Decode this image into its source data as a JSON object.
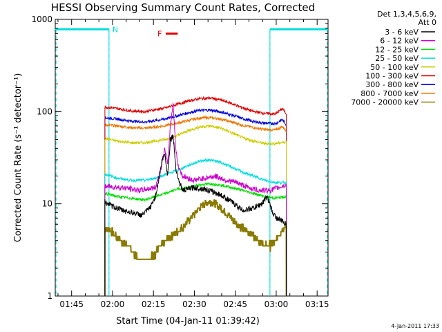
{
  "chart_data": {
    "type": "line",
    "title": "HESSI Observing Summary Count Rates, Corrected",
    "xlabel": "Start Time (04-Jan-11 01:39:42)",
    "ylabel": "Corrected Count Rate (s⁻¹ detector⁻¹)",
    "yscale": "log",
    "ylim": [
      1,
      1000
    ],
    "xlim_minutes": [
      -0.7,
      99.3
    ],
    "x_ticks": [
      "01:45",
      "02:00",
      "02:15",
      "02:30",
      "02:45",
      "03:00",
      "03:15"
    ],
    "x_tick_minutes": [
      5.3,
      20.3,
      35.3,
      50.3,
      65.3,
      80.3,
      95.3
    ],
    "y_ticks": [
      "1",
      "10",
      "100",
      "1000"
    ],
    "y_tick_values": [
      1,
      10,
      100,
      1000
    ],
    "legend_header": [
      "Det 1,3,4,5,6,9,",
      "Att 0"
    ],
    "legend_position": "right",
    "series": [
      {
        "name": "3 - 6 keV",
        "color": "#000000",
        "x": [
          17.5,
          20,
          24,
          28,
          31,
          34,
          36,
          37.5,
          38.5,
          39.5,
          40.5,
          41.5,
          42.5,
          43.5,
          44.5,
          46,
          50,
          54,
          57,
          60,
          64,
          68,
          72,
          75,
          77,
          79,
          80.5,
          82.5,
          84
        ],
        "y": [
          10.5,
          9.5,
          8.5,
          8,
          7.5,
          9,
          12,
          20,
          30,
          35,
          20,
          50,
          55,
          25,
          18,
          14,
          15,
          14.5,
          13.5,
          12.5,
          10.5,
          8.5,
          9,
          10,
          12,
          8,
          7,
          6.5,
          6
        ]
      },
      {
        "name": "6 - 12 keV",
        "color": "#cc00cc",
        "x": [
          17.5,
          24,
          30,
          36,
          38,
          39.5,
          40.5,
          41.5,
          42.5,
          43.5,
          44.5,
          46,
          50,
          54,
          58,
          62,
          66,
          70,
          74,
          78,
          81,
          84
        ],
        "y": [
          15.5,
          15,
          14,
          15,
          24,
          40,
          26,
          70,
          125,
          38,
          25,
          20,
          18,
          19,
          20,
          18,
          17,
          15,
          14,
          14,
          15,
          16
        ]
      },
      {
        "name": "12 - 25 keV",
        "color": "#00dd00",
        "x": [
          17.5,
          22,
          27,
          32,
          36,
          40,
          44,
          48,
          52,
          56,
          60,
          64,
          68,
          72,
          76,
          80,
          84
        ],
        "y": [
          13,
          12,
          11.5,
          11,
          12,
          13,
          14.5,
          15,
          16,
          16.5,
          16,
          15,
          14,
          13,
          12,
          11.5,
          12
        ]
      },
      {
        "name": "25 - 50 keV",
        "color": "#00dddd",
        "x": [
          17.5,
          22,
          27,
          32,
          36,
          40,
          44,
          48,
          52,
          56,
          60,
          64,
          68,
          72,
          76,
          80,
          84
        ],
        "y": [
          21,
          19,
          18,
          18,
          19,
          21,
          23,
          26,
          29,
          30,
          28,
          25,
          22,
          20,
          18,
          17,
          17
        ]
      },
      {
        "name": "50 - 100 keV",
        "color": "#cccc00",
        "x": [
          17.5,
          22,
          27,
          32,
          36,
          40,
          44,
          48,
          52,
          56,
          60,
          64,
          68,
          72,
          76,
          80,
          84
        ],
        "y": [
          51,
          48,
          46,
          46,
          48,
          50,
          55,
          62,
          68,
          70,
          66,
          59,
          52,
          48,
          45,
          45,
          47
        ]
      },
      {
        "name": "100 - 300 keV",
        "color": "#dd0000",
        "x": [
          17.5,
          22,
          27,
          32,
          36,
          40,
          44,
          48,
          52,
          56,
          60,
          64,
          68,
          72,
          76,
          80,
          82.5,
          84
        ],
        "y": [
          112,
          108,
          102,
          100,
          105,
          110,
          120,
          130,
          138,
          140,
          134,
          122,
          110,
          100,
          96,
          94,
          108,
          95
        ]
      },
      {
        "name": "300 - 800 keV",
        "color": "#0000dd",
        "x": [
          17.5,
          22,
          27,
          32,
          36,
          40,
          44,
          48,
          52,
          56,
          60,
          64,
          68,
          72,
          76,
          80,
          82.5,
          84
        ],
        "y": [
          86,
          83,
          79,
          77,
          80,
          84,
          90,
          97,
          103,
          104,
          99,
          92,
          84,
          78,
          75,
          74,
          82,
          72
        ]
      },
      {
        "name": "800 - 7000 keV",
        "color": "#ee7700",
        "x": [
          17.5,
          22,
          27,
          32,
          36,
          40,
          44,
          48,
          52,
          56,
          60,
          64,
          68,
          72,
          76,
          80,
          82.5,
          84
        ],
        "y": [
          72,
          70,
          67,
          66,
          68,
          71,
          75,
          80,
          85,
          86,
          83,
          77,
          71,
          67,
          64,
          63,
          69,
          62
        ]
      },
      {
        "name": "7000 - 20000 keV",
        "color": "#8a7a00",
        "x": [
          17.5,
          20,
          23,
          26,
          28,
          30,
          32,
          34,
          36,
          38,
          40,
          42,
          44,
          46,
          48,
          50,
          52,
          54,
          56,
          58,
          60,
          62,
          64,
          66,
          68,
          70,
          72,
          74,
          76,
          78,
          80,
          82,
          84
        ],
        "y": [
          5.5,
          5,
          4,
          3.5,
          3,
          2.5,
          2.5,
          2.5,
          3,
          3.5,
          4,
          4.5,
          5,
          5.5,
          6.5,
          7.5,
          9,
          10,
          10.5,
          10,
          9,
          8,
          7,
          6,
          5.5,
          5,
          4.5,
          4,
          3.5,
          3.5,
          4,
          5,
          6
        ]
      }
    ],
    "annotations": {
      "night_label": "N",
      "flare_label": "F",
      "night_segments_minutes": [
        [
          -0.7,
          19
        ],
        [
          78,
          99.3
        ]
      ],
      "night_level": 780,
      "night_boundaries_minutes": [
        19,
        78
      ],
      "flare_segment_minutes": [
        39.8,
        44.2
      ],
      "flare_level": 700
    },
    "timestamp": "4-Jan-2011 17:33"
  }
}
